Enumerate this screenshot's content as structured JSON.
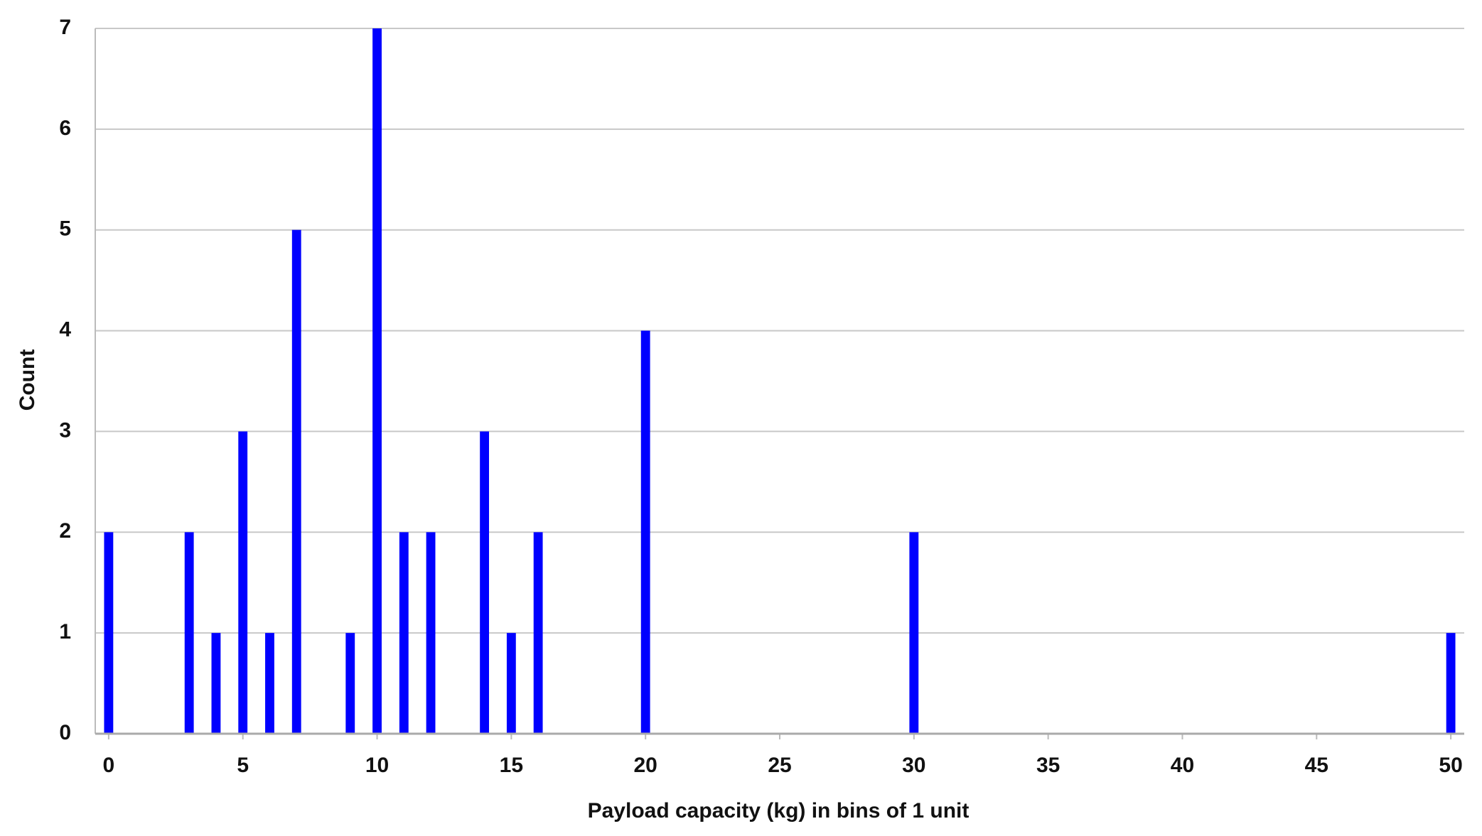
{
  "chart_data": {
    "type": "bar",
    "x_label": "Payload capacity (kg) in bins of 1 unit",
    "y_label": "Count",
    "x": [
      0,
      3,
      4,
      5,
      6,
      7,
      9,
      10,
      11,
      12,
      14,
      15,
      16,
      20,
      30,
      50
    ],
    "values": [
      2,
      2,
      1,
      3,
      1,
      5,
      1,
      7,
      2,
      2,
      3,
      1,
      2,
      4,
      2,
      1
    ],
    "color": "#0000ff",
    "xlim": [
      -0.5,
      50.5
    ],
    "xticks": [
      0,
      5,
      10,
      15,
      20,
      25,
      30,
      35,
      40,
      45,
      50
    ],
    "ylim": [
      0,
      7
    ],
    "yticks": [
      0,
      1,
      2,
      3,
      4,
      5,
      6,
      7
    ],
    "grid": true
  }
}
